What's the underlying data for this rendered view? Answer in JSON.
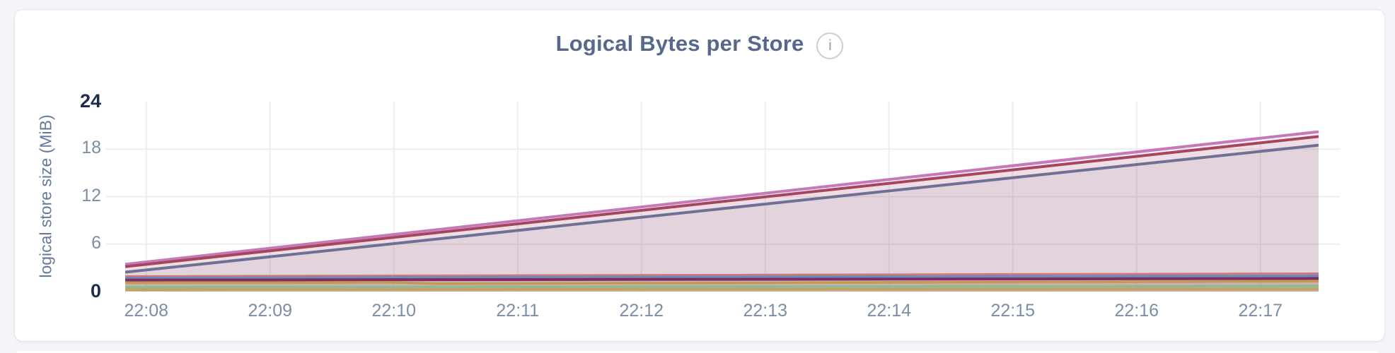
{
  "page": {
    "background": "#f4f5f9"
  },
  "card": {
    "title": "Logical Bytes per Store",
    "info_icon_glyph": "i"
  },
  "chart_data": {
    "type": "area",
    "title": "Logical Bytes per Store",
    "ylabel": "logical store size (MiB)",
    "unit": "MiB",
    "grid": true,
    "legend_position": "none",
    "x_tick_labels": [
      "22:08",
      "22:09",
      "22:10",
      "22:11",
      "22:12",
      "22:13",
      "22:14",
      "22:15",
      "22:16",
      "22:17"
    ],
    "x_ticks_minutes": [
      0,
      1,
      2,
      3,
      4,
      5,
      6,
      7,
      8,
      9
    ],
    "x_base_time": "22:08",
    "x_domain_minutes": [
      -0.17,
      9.47
    ],
    "ylim": [
      0,
      24
    ],
    "y_ticks": [
      0,
      6,
      12,
      18,
      24
    ],
    "y_emphasized_ticks": [
      0,
      24
    ],
    "gridline_color": "#ededed",
    "series": [
      {
        "id": "store-1",
        "color": "#C678B8",
        "line_width": 4,
        "fill_opacity": 0.11,
        "points": [
          [
            -0.17,
            3.45
          ],
          [
            9.47,
            20.2
          ]
        ]
      },
      {
        "id": "store-2",
        "color": "#A4465C",
        "line_width": 4,
        "fill_opacity": 0.1,
        "points": [
          [
            -0.17,
            3.15
          ],
          [
            9.47,
            19.6
          ]
        ]
      },
      {
        "id": "store-3",
        "color": "#6E7194",
        "line_width": 4,
        "fill_opacity": 0.1,
        "points": [
          [
            -0.17,
            2.45
          ],
          [
            9.47,
            18.5
          ]
        ]
      },
      {
        "id": "store-4",
        "color": "#D8766F",
        "line_width": 2.5,
        "fill_opacity": 0.1,
        "points": [
          [
            -0.17,
            1.95
          ],
          [
            9.47,
            2.3
          ]
        ]
      },
      {
        "id": "store-5",
        "color": "#7088BA",
        "line_width": 4,
        "fill_opacity": 0.1,
        "points": [
          [
            -0.17,
            1.7
          ],
          [
            9.47,
            2.0
          ]
        ]
      },
      {
        "id": "store-6",
        "color": "#7D2F62",
        "line_width": 4,
        "fill_opacity": 0.1,
        "points": [
          [
            -0.17,
            1.45
          ],
          [
            9.47,
            1.65
          ]
        ]
      },
      {
        "id": "store-7",
        "color": "#C59A4F",
        "line_width": 3.5,
        "fill_opacity": 0.1,
        "points": [
          [
            -0.17,
            1.1
          ],
          [
            2.0,
            1.15
          ],
          [
            2.35,
            1.0
          ],
          [
            9.47,
            1.3
          ]
        ]
      },
      {
        "id": "store-8",
        "color": "#8DBB8F",
        "line_width": 3.5,
        "fill_opacity": 0.1,
        "points": [
          [
            -0.17,
            0.55
          ],
          [
            9.47,
            0.7
          ]
        ]
      },
      {
        "id": "store-9",
        "color": "#C7A25F",
        "line_width": 3.5,
        "fill_opacity": 0.1,
        "points": [
          [
            -0.17,
            0.25
          ],
          [
            9.47,
            0.35
          ]
        ]
      }
    ]
  }
}
